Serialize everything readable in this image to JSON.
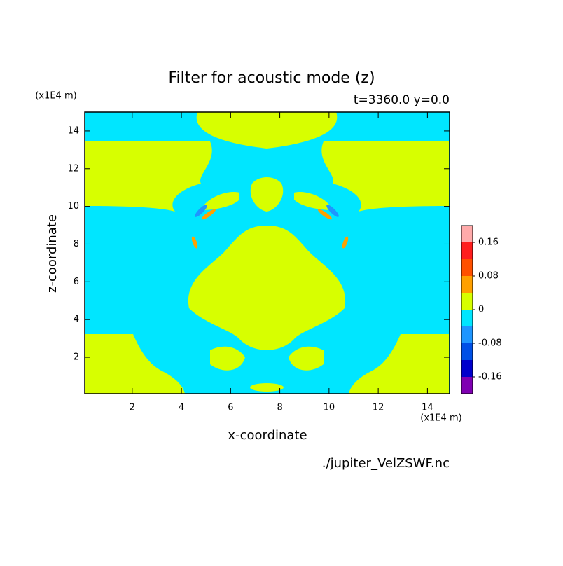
{
  "chart_data": {
    "type": "contour",
    "title": "Filter for acoustic mode (z)",
    "subtitle": "t=3360.0 y=0.0",
    "x_label": "x-coordinate",
    "y_label": "z-coordinate",
    "x_unit": "(x1E4 m)",
    "y_unit": "(x1E4 m)",
    "source": "./jupiter_VelZSWF.nc",
    "xlim": [
      0.07,
      14.9
    ],
    "ylim": [
      0.07,
      15.0
    ],
    "xticks": [
      2,
      4,
      6,
      8,
      10,
      12,
      14
    ],
    "yticks": [
      2,
      4,
      6,
      8,
      10,
      12,
      14
    ],
    "colorbar": {
      "levels": [
        -0.2,
        -0.16,
        -0.12,
        -0.08,
        -0.04,
        0,
        0.04,
        0.08,
        0.12,
        0.16,
        0.2
      ],
      "colors": [
        "#7f00b2",
        "#0000cc",
        "#0050e6",
        "#1e96ff",
        "#00e6ff",
        "#d7ff00",
        "#ffa000",
        "#ff5000",
        "#ff1e1e",
        "#ffaaaa"
      ],
      "ticks": [
        -0.16,
        -0.08,
        0,
        0.08,
        0.16
      ]
    }
  }
}
